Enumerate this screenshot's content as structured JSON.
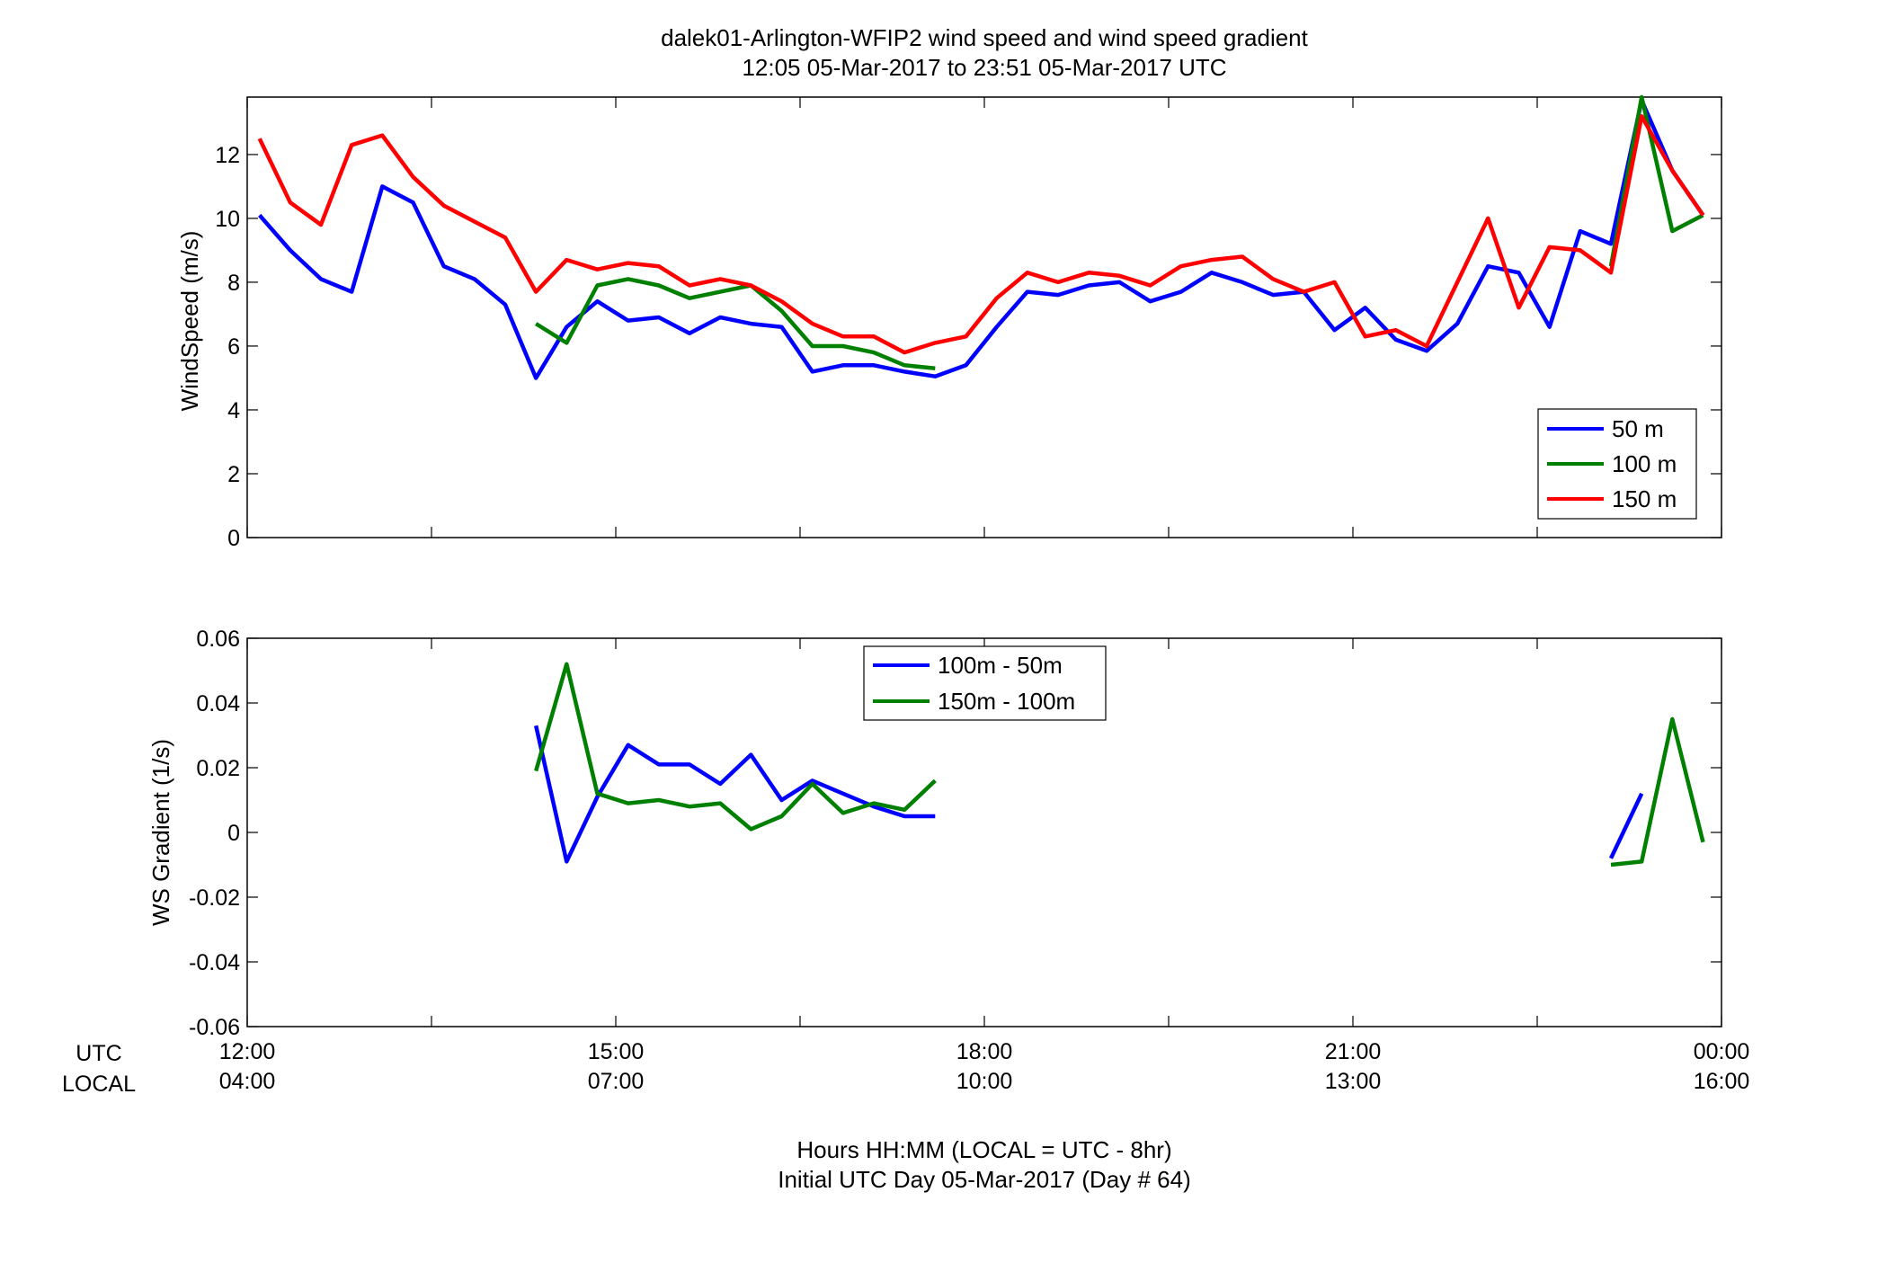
{
  "title": {
    "line1": "dalek01-Arlington-WFIP2  wind speed and wind speed gradient",
    "line2": "12:05 05-Mar-2017 to 23:51 05-Mar-2017  UTC"
  },
  "footer": {
    "line1": "Hours HH:MM  (LOCAL = UTC - 8hr)",
    "line2": "Initial UTC Day 05-Mar-2017 (Day # 64)"
  },
  "time_axis": {
    "row1_label": "UTC",
    "row2_label": "LOCAL",
    "utc_ticks": [
      "12:00",
      "15:00",
      "18:00",
      "21:00",
      "00:00"
    ],
    "local_ticks": [
      "04:00",
      "07:00",
      "10:00",
      "13:00",
      "16:00"
    ]
  },
  "colors": {
    "blue": "#0000ff",
    "green": "#008000",
    "red": "#ff0000"
  },
  "chart_data": [
    {
      "type": "line",
      "ylabel": "WindSpeed (m/s)",
      "xlim": [
        12.0,
        24.0
      ],
      "ylim": [
        0,
        13.8
      ],
      "yticks": [
        0,
        2,
        4,
        6,
        8,
        10,
        12
      ],
      "grid": "ticks only",
      "legend_position": "lower-right",
      "x": [
        12.1,
        12.35,
        12.6,
        12.85,
        13.1,
        13.35,
        13.6,
        13.85,
        14.1,
        14.35,
        14.6,
        14.85,
        15.1,
        15.35,
        15.6,
        15.85,
        16.1,
        16.35,
        16.6,
        16.85,
        17.1,
        17.35,
        17.6,
        17.85,
        18.1,
        18.35,
        18.6,
        18.85,
        19.1,
        19.35,
        19.6,
        19.85,
        20.1,
        20.35,
        20.6,
        20.85,
        21.1,
        21.35,
        21.6,
        21.85,
        22.1,
        22.35,
        22.6,
        22.85,
        23.1,
        23.35,
        23.6,
        23.85
      ],
      "series": [
        {
          "name": "50 m",
          "color": "#0000ff",
          "values": [
            10.1,
            9.0,
            8.1,
            7.7,
            11.0,
            10.5,
            8.5,
            8.1,
            7.3,
            5.0,
            6.6,
            7.4,
            6.8,
            6.9,
            6.4,
            6.9,
            6.7,
            6.6,
            5.2,
            5.4,
            5.4,
            5.2,
            5.05,
            5.4,
            6.6,
            7.7,
            7.6,
            7.9,
            8.0,
            7.4,
            7.7,
            8.3,
            8.0,
            7.6,
            7.7,
            6.5,
            7.2,
            6.2,
            5.85,
            6.7,
            8.5,
            8.3,
            6.6,
            9.6,
            9.2,
            13.7,
            11.5,
            10.1
          ]
        },
        {
          "name": "100 m",
          "color": "#008000",
          "values": [
            null,
            null,
            null,
            null,
            null,
            null,
            null,
            null,
            null,
            6.7,
            6.1,
            7.9,
            8.1,
            7.9,
            7.5,
            7.7,
            7.9,
            7.1,
            6.0,
            6.0,
            5.8,
            5.4,
            5.3,
            null,
            null,
            null,
            null,
            null,
            null,
            null,
            null,
            null,
            null,
            null,
            null,
            null,
            null,
            null,
            null,
            null,
            null,
            null,
            null,
            null,
            8.5,
            13.8,
            9.6,
            10.1
          ]
        },
        {
          "name": "150 m",
          "color": "#ff0000",
          "values": [
            12.5,
            10.5,
            9.8,
            12.3,
            12.6,
            11.3,
            10.4,
            9.9,
            9.4,
            7.7,
            8.7,
            8.4,
            8.6,
            8.5,
            7.9,
            8.1,
            7.9,
            7.4,
            6.7,
            6.3,
            6.3,
            5.8,
            6.1,
            6.3,
            7.5,
            8.3,
            8.0,
            8.3,
            8.2,
            7.9,
            8.5,
            8.7,
            8.8,
            8.1,
            7.7,
            8.0,
            6.3,
            6.5,
            6.0,
            8.0,
            10.0,
            7.2,
            9.1,
            9.0,
            8.3,
            13.2,
            11.5,
            10.1
          ]
        }
      ]
    },
    {
      "type": "line",
      "ylabel": "WS Gradient (1/s)",
      "xlim": [
        12.0,
        24.0
      ],
      "ylim": [
        -0.06,
        0.06
      ],
      "yticks": [
        "-0.06",
        "-0.04",
        "-0.02",
        "0",
        "0.02",
        "0.04",
        "0.06"
      ],
      "grid": "ticks only",
      "legend_position": "top-center",
      "x": [
        14.35,
        14.6,
        14.85,
        15.1,
        15.35,
        15.6,
        15.85,
        16.1,
        16.35,
        16.6,
        16.85,
        17.1,
        17.35,
        17.6,
        22.35,
        22.6,
        22.85,
        23.1,
        23.35,
        23.6,
        23.85
      ],
      "series": [
        {
          "name": "100m - 50m",
          "color": "#0000ff",
          "values": [
            0.033,
            -0.009,
            0.011,
            0.027,
            0.021,
            0.021,
            0.015,
            0.024,
            0.01,
            0.016,
            0.012,
            0.008,
            0.005,
            0.005,
            null,
            null,
            null,
            -0.008,
            0.012,
            null,
            null
          ]
        },
        {
          "name": "150m - 100m",
          "color": "#008000",
          "values": [
            0.019,
            0.052,
            0.012,
            0.009,
            0.01,
            0.008,
            0.009,
            0.001,
            0.005,
            0.015,
            0.006,
            0.009,
            0.007,
            0.016,
            null,
            null,
            null,
            -0.01,
            -0.009,
            0.035,
            -0.003
          ]
        }
      ]
    }
  ]
}
